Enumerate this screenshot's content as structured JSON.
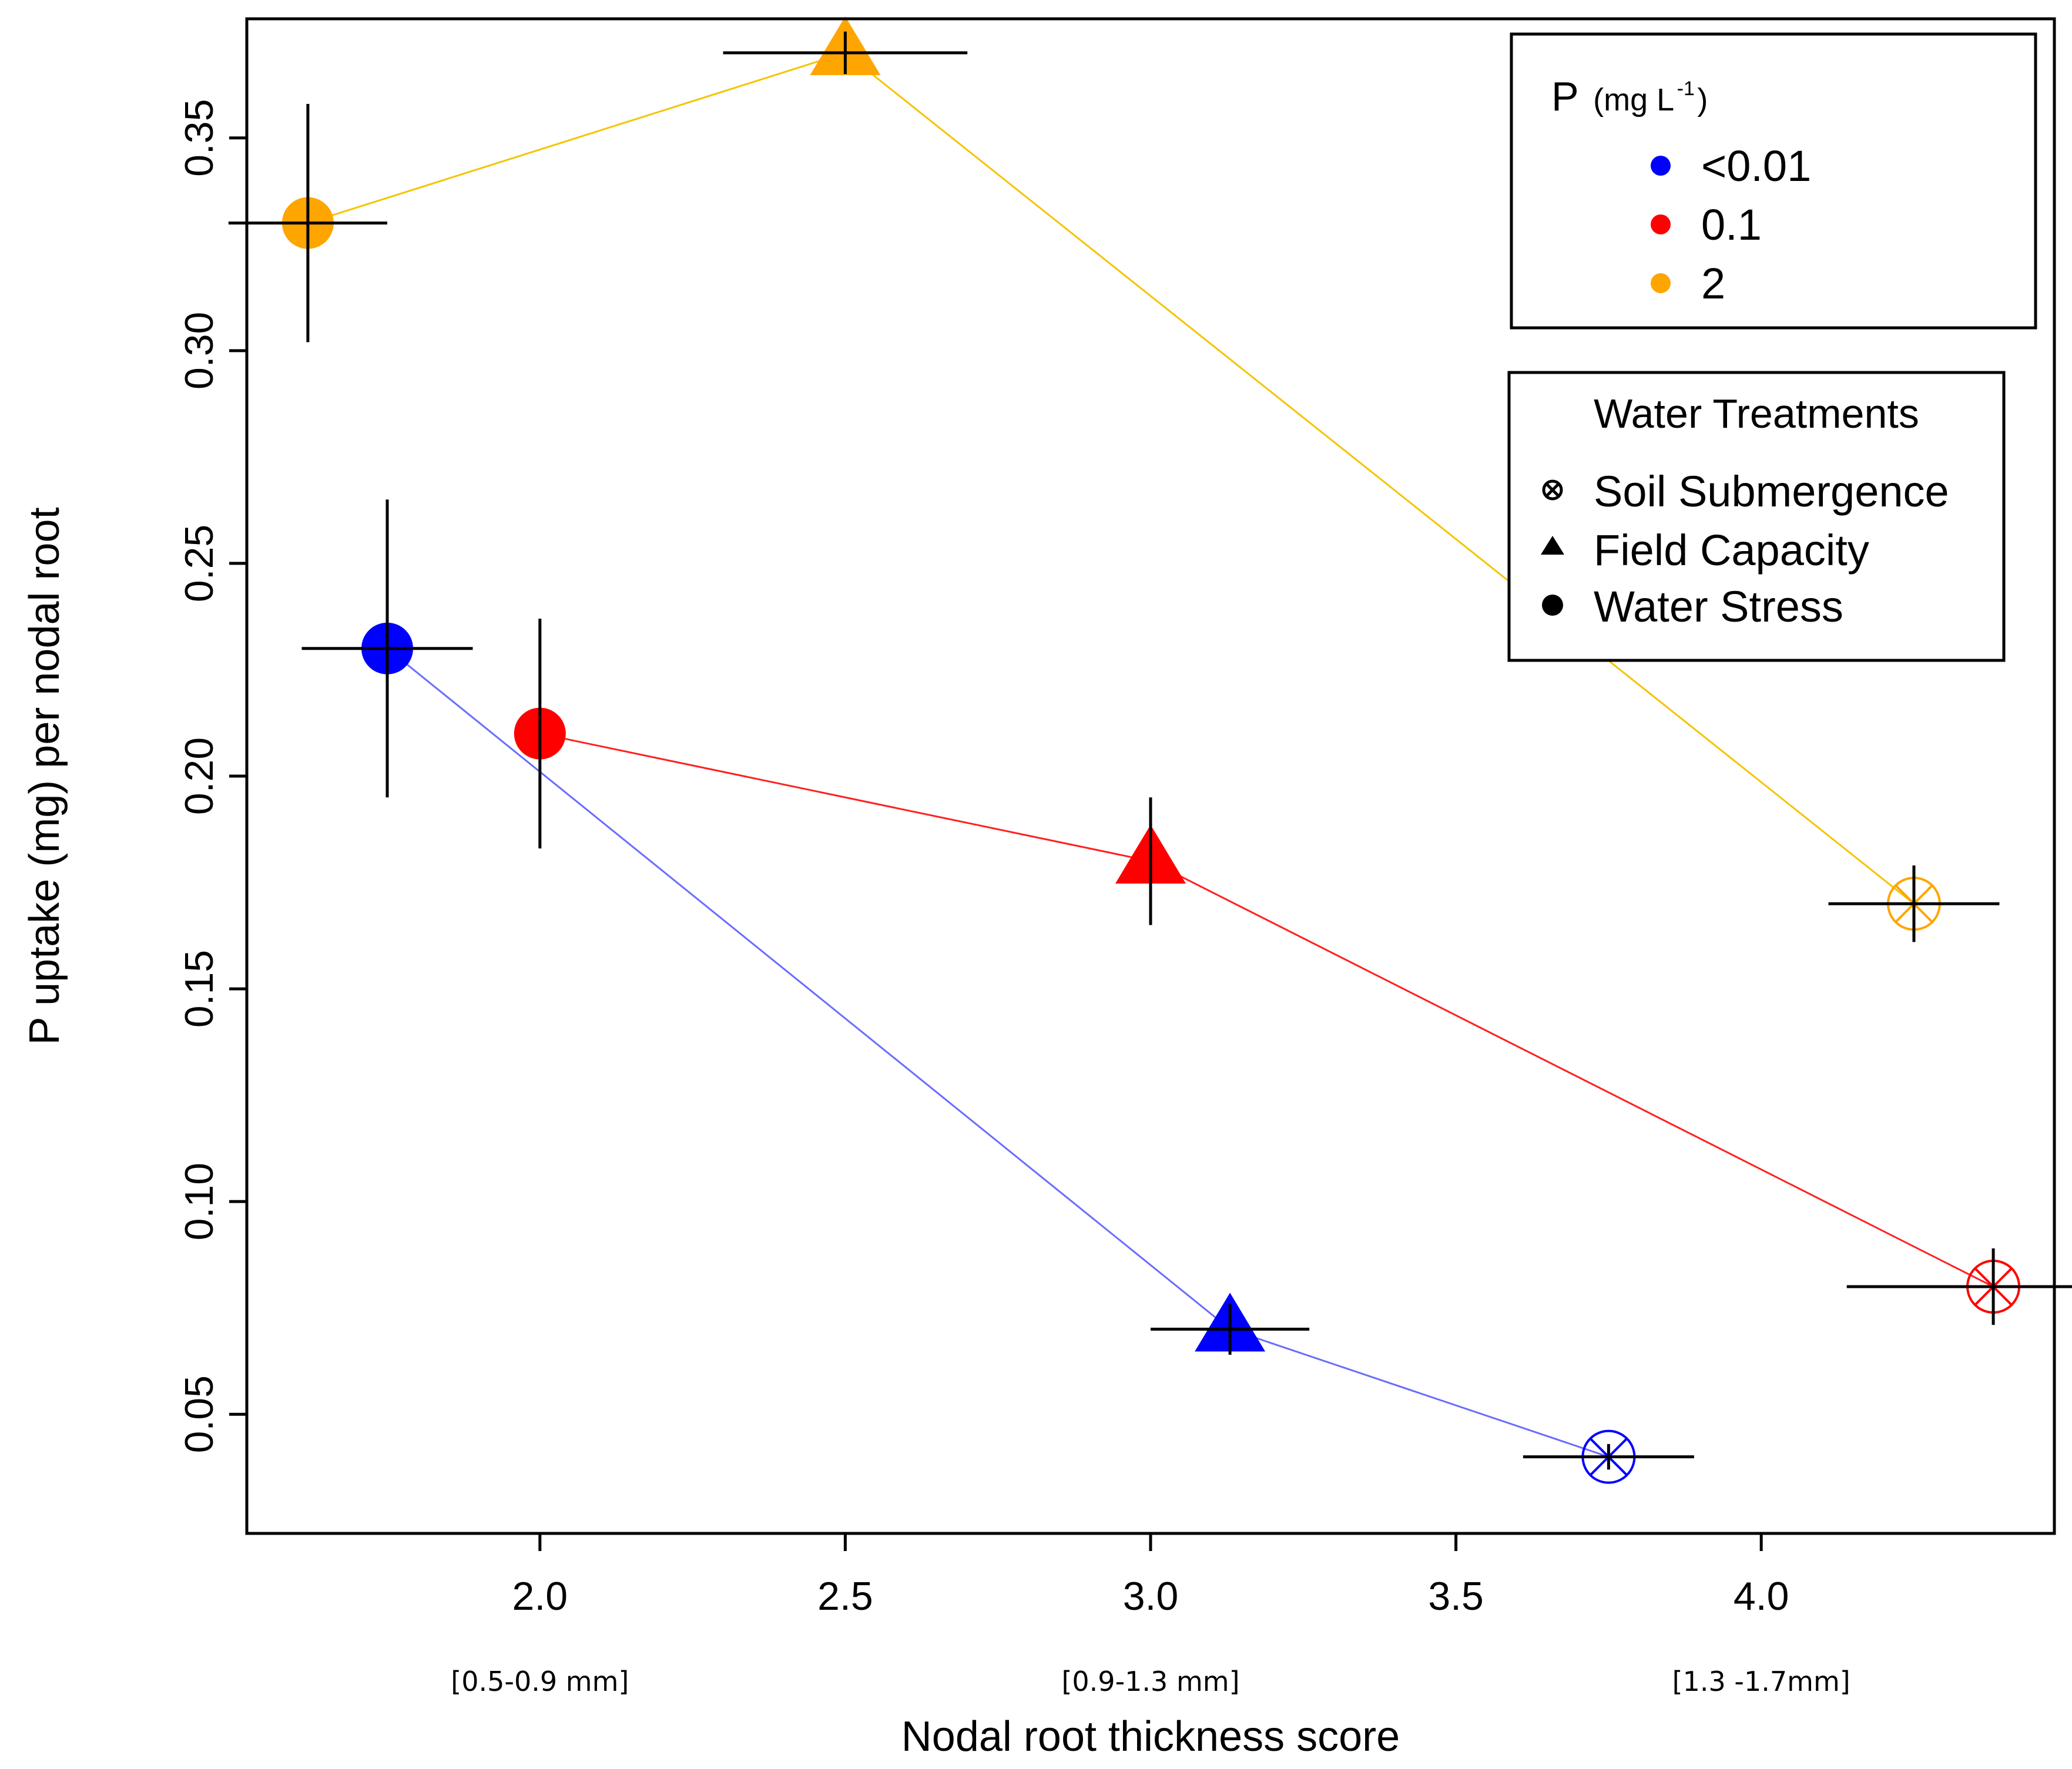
{
  "chart_data": {
    "type": "scatter",
    "title": "",
    "xlabel": "Nodal root thickness score",
    "ylabel": "P uptake (mg) per nodal root",
    "xlim": [
      1.52,
      4.48
    ],
    "ylim": [
      0.022,
      0.378
    ],
    "x_ticks": [
      "2.0",
      "2.5",
      "3.0",
      "3.5",
      "4.0"
    ],
    "x_tick_values": [
      2.0,
      2.5,
      3.0,
      3.5,
      4.0
    ],
    "x_range_labels": [
      {
        "x": 2.0,
        "text": "[0.5-0.9 mm]"
      },
      {
        "x": 3.0,
        "text": "[0.9-1.3 mm]"
      },
      {
        "x": 4.0,
        "text": "[1.3 -1.7mm]"
      }
    ],
    "y_ticks": [
      "0.05",
      "0.10",
      "0.15",
      "0.20",
      "0.25",
      "0.30",
      "0.35"
    ],
    "y_tick_values": [
      0.05,
      0.1,
      0.15,
      0.2,
      0.25,
      0.3,
      0.35
    ],
    "series": [
      {
        "name": "<0.01",
        "color": "#0000ff",
        "line_color": "#6b6bff",
        "points": [
          {
            "treatment": "Water Stress",
            "x": 1.75,
            "y": 0.23,
            "xerr": 0.14,
            "yerr": 0.035
          },
          {
            "treatment": "Field Capacity",
            "x": 3.13,
            "y": 0.07,
            "xerr": 0.13,
            "yerr": 0.006
          },
          {
            "treatment": "Soil Submergence",
            "x": 3.75,
            "y": 0.04,
            "xerr": 0.14,
            "yerr": 0.003
          }
        ]
      },
      {
        "name": "0.1",
        "color": "#ff0000",
        "line_color": "#ff2020",
        "points": [
          {
            "treatment": "Water Stress",
            "x": 2.0,
            "y": 0.21,
            "xerr": 0.0,
            "yerr": 0.027
          },
          {
            "treatment": "Field Capacity",
            "x": 3.0,
            "y": 0.18,
            "xerr": 0.0,
            "yerr": 0.015
          },
          {
            "treatment": "Soil Submergence",
            "x": 4.38,
            "y": 0.08,
            "xerr": 0.24,
            "yerr": 0.009
          }
        ]
      },
      {
        "name": "2",
        "color": "#ffa500",
        "line_color": "#f5c400",
        "points": [
          {
            "treatment": "Water Stress",
            "x": 1.62,
            "y": 0.33,
            "xerr": 0.13,
            "yerr": 0.028
          },
          {
            "treatment": "Field Capacity",
            "x": 2.5,
            "y": 0.37,
            "xerr": 0.2,
            "yerr": 0.005
          },
          {
            "treatment": "Soil Submergence",
            "x": 4.25,
            "y": 0.17,
            "xerr": 0.14,
            "yerr": 0.009
          }
        ]
      }
    ],
    "legend_p": {
      "title": "P",
      "unit": "(mg L",
      "unit_exp": "-1",
      "unit_close": ")",
      "entries": [
        "<0.01",
        "0.1",
        "2"
      ],
      "colors": [
        "#0000ff",
        "#ff0000",
        "#ffa500"
      ],
      "placement": "top-right"
    },
    "legend_water": {
      "title": "Water Treatments",
      "entries": [
        "Soil Submergence",
        "Field Capacity",
        "Water Stress"
      ],
      "placement": "upper-right"
    }
  }
}
